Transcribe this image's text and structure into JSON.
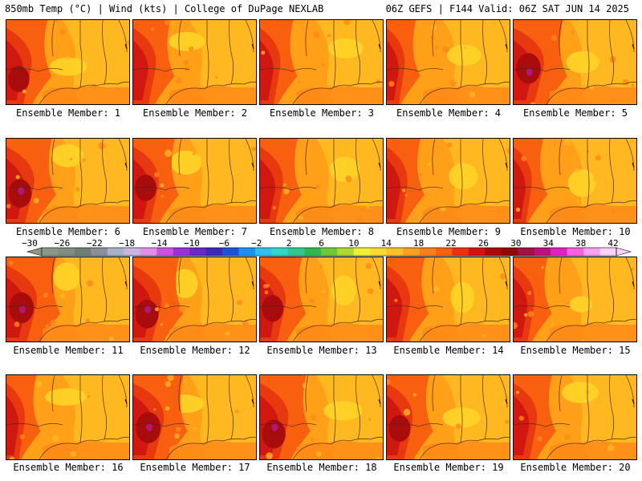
{
  "header": {
    "left": "850mb Temp (°C) | Wind (kts) | College of DuPage NEXLAB",
    "right": "06Z GEFS | F144 Valid: 06Z SAT JUN 14 2025"
  },
  "panels": [
    {
      "member": 1,
      "caption": "Ensemble Member: 1"
    },
    {
      "member": 2,
      "caption": "Ensemble Member: 2"
    },
    {
      "member": 3,
      "caption": "Ensemble Member: 3"
    },
    {
      "member": 4,
      "caption": "Ensemble Member: 4"
    },
    {
      "member": 5,
      "caption": "Ensemble Member: 5"
    },
    {
      "member": 6,
      "caption": "Ensemble Member: 6"
    },
    {
      "member": 7,
      "caption": "Ensemble Member: 7"
    },
    {
      "member": 8,
      "caption": "Ensemble Member: 8"
    },
    {
      "member": 9,
      "caption": "Ensemble Member: 9"
    },
    {
      "member": 10,
      "caption": "Ensemble Member: 10"
    },
    {
      "member": 11,
      "caption": "Ensemble Member: 11"
    },
    {
      "member": 12,
      "caption": "Ensemble Member: 12"
    },
    {
      "member": 13,
      "caption": "Ensemble Member: 13"
    },
    {
      "member": 14,
      "caption": "Ensemble Member: 14"
    },
    {
      "member": 15,
      "caption": "Ensemble Member: 15"
    },
    {
      "member": 16,
      "caption": "Ensemble Member: 16"
    },
    {
      "member": 17,
      "caption": "Ensemble Member: 17"
    },
    {
      "member": 18,
      "caption": "Ensemble Member: 18"
    },
    {
      "member": 19,
      "caption": "Ensemble Member: 19"
    },
    {
      "member": 20,
      "caption": "Ensemble Member: 20"
    }
  ],
  "colorbar": {
    "labels": [
      "-30",
      "-26",
      "-22",
      "-18",
      "-14",
      "-10",
      "-6",
      "-2",
      "2",
      "6",
      "10",
      "14",
      "18",
      "22",
      "26",
      "30",
      "34",
      "38",
      "42"
    ],
    "colors": [
      "#8a9a86",
      "#7f8f7f",
      "#6e7f78",
      "#8a8f9a",
      "#a7b2c8",
      "#c9b4e2",
      "#e08ee8",
      "#d050e0",
      "#9a30d8",
      "#6a28c8",
      "#3a2ab8",
      "#1f50d8",
      "#1f8ff0",
      "#30c0f0",
      "#30d8c8",
      "#30c890",
      "#30b850",
      "#70c838",
      "#b0d830",
      "#f0f030",
      "#ffd830",
      "#ffc028",
      "#ffa020",
      "#ff8018",
      "#ff6010",
      "#f03010",
      "#d81010",
      "#b00808",
      "#900808",
      "#a01040",
      "#c01080",
      "#e020c0",
      "#ff60e0",
      "#ffa0f0",
      "#ffd0f8"
    ],
    "palette": {
      "t14": "#ffe030",
      "t16": "#ffd428",
      "t18": "#ffb820",
      "t20": "#ffa018",
      "t22": "#ff8818",
      "t24": "#f86010",
      "t26": "#e83810",
      "t28": "#d01810",
      "t30": "#a80c0c",
      "t32": "#880818",
      "t34": "#b01878"
    }
  }
}
